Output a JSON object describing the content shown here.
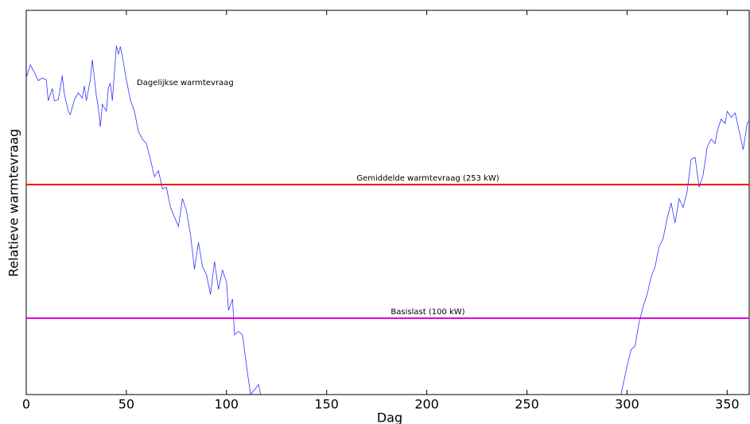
{
  "chart_data": {
    "type": "line",
    "xlabel": "Dag",
    "ylabel": "Relatieve warmtevraag",
    "x": [
      0,
      2,
      4,
      6,
      8,
      10,
      11,
      13,
      14,
      16,
      18,
      19,
      21,
      22,
      24,
      26,
      28,
      29,
      30,
      32,
      33,
      35,
      36,
      37,
      38,
      40,
      41,
      42,
      43,
      45,
      46,
      47,
      48,
      50,
      52,
      54,
      56,
      58,
      60,
      62,
      64,
      66,
      68,
      70,
      72,
      74,
      76,
      78,
      80,
      82,
      84,
      86,
      88,
      90,
      92,
      94,
      96,
      98,
      100,
      101,
      103,
      104,
      106,
      108,
      110,
      112,
      114,
      116,
      117,
      200,
      297,
      300,
      302,
      304,
      306,
      308,
      310,
      312,
      314,
      316,
      318,
      320,
      322,
      324,
      326,
      328,
      330,
      332,
      334,
      336,
      338,
      340,
      342,
      344,
      345,
      347,
      349,
      350,
      352,
      354,
      356,
      358,
      360,
      361
    ],
    "series": [
      {
        "name": "Dagelijkse warmtevraag",
        "color": "#3333ff",
        "values": [
          375,
          390,
          382,
          372,
          375,
          373,
          349,
          363,
          349,
          350,
          378,
          357,
          337,
          333,
          350,
          358,
          352,
          366,
          349,
          373,
          396,
          355,
          341,
          319,
          345,
          337,
          364,
          369,
          349,
          412,
          402,
          411,
          400,
          373,
          350,
          337,
          314,
          305,
          300,
          282,
          262,
          269,
          248,
          250,
          227,
          216,
          205,
          237,
          223,
          196,
          156,
          187,
          159,
          150,
          127,
          165,
          133,
          155,
          141,
          109,
          122,
          81,
          85,
          81,
          45,
          13,
          18,
          24,
          13,
          null,
          13,
          45,
          64,
          68,
          95,
          113,
          127,
          147,
          159,
          182,
          191,
          214,
          232,
          209,
          237,
          227,
          245,
          282,
          284,
          250,
          264,
          296,
          305,
          300,
          314,
          328,
          323,
          337,
          330,
          335,
          314,
          293,
          323,
          326
        ]
      }
    ],
    "reference_lines": [
      {
        "label": "Gemiddelde warmtevraag (253 kW)",
        "value": 253,
        "color": "#ff0000"
      },
      {
        "label": "Basislast (100 kW)",
        "value": 100,
        "color": "#e000e0"
      }
    ],
    "xlim": [
      0,
      361
    ],
    "ylim": [
      12.6,
      452.5
    ],
    "xticks": [
      0,
      50,
      100,
      150,
      200,
      250,
      300,
      350
    ]
  }
}
